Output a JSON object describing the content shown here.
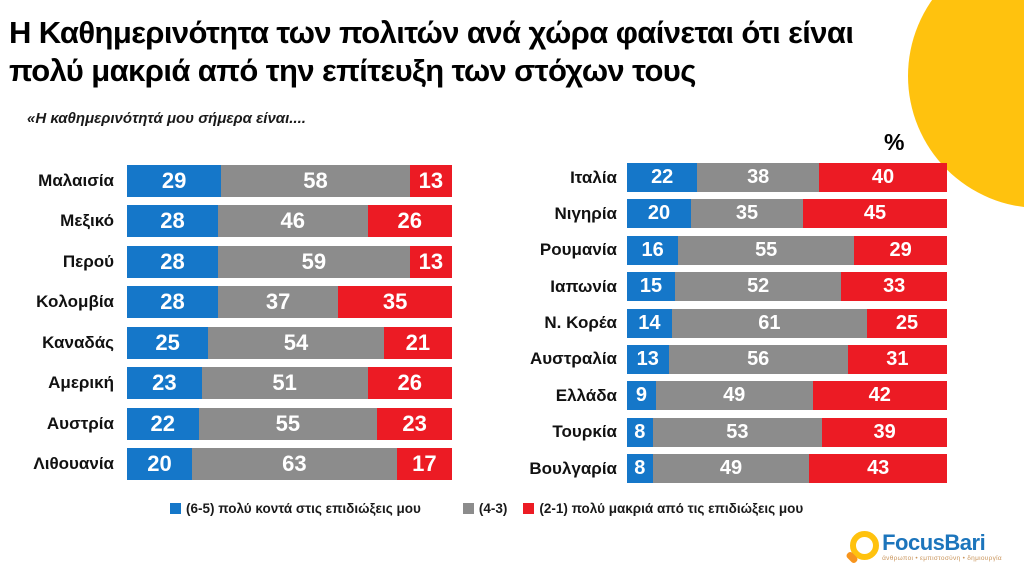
{
  "header": {
    "title_lines": [
      "Η Καθημερινότητα των πολιτών ανά χώρα φαίνεται ότι είναι",
      "πολύ μακριά από την επίτευξη των στόχων τους"
    ]
  },
  "subtitle": "«Η καθημερινότητά μου σήμερα είναι....",
  "percent_label": "%",
  "colors": {
    "close": "#1577C9",
    "mid": "#8C8C8C",
    "far": "#EC1B24",
    "accent_circle": "#FFC20E",
    "logo_blue": "#1C75BC",
    "logo_orange": "#F7941D"
  },
  "chart_data": [
    {
      "type": "bar",
      "orientation": "horizontal",
      "stacked": true,
      "xlim": [
        0,
        100
      ],
      "categories": [
        "Μαλαισία",
        "Μεξικό",
        "Περού",
        "Κολομβία",
        "Καναδάς",
        "Αμερική",
        "Αυστρία",
        "Λιθουανία"
      ],
      "series": [
        {
          "name": "(6-5) πολύ κοντά στις επιδιώξεις μου",
          "color": "#1577C9",
          "values": [
            29,
            28,
            28,
            28,
            25,
            23,
            22,
            20
          ]
        },
        {
          "name": "(4-3)",
          "color": "#8C8C8C",
          "values": [
            58,
            46,
            59,
            37,
            54,
            51,
            55,
            63
          ]
        },
        {
          "name": "(2-1) πολύ μακριά από τις επιδιώξεις μου",
          "color": "#EC1B24",
          "values": [
            13,
            26,
            13,
            35,
            21,
            26,
            23,
            17
          ]
        }
      ]
    },
    {
      "type": "bar",
      "orientation": "horizontal",
      "stacked": true,
      "xlim": [
        0,
        100
      ],
      "categories": [
        "Ιταλία",
        "Νιγηρία",
        "Ρουμανία",
        "Ιαπωνία",
        "Ν. Κορέα",
        "Αυστραλία",
        "Ελλάδα",
        "Τουρκία",
        "Βουλγαρία"
      ],
      "series": [
        {
          "name": "(6-5) πολύ κοντά στις επιδιώξεις μου",
          "color": "#1577C9",
          "values": [
            22,
            20,
            16,
            15,
            14,
            13,
            9,
            8,
            8
          ]
        },
        {
          "name": "(4-3)",
          "color": "#8C8C8C",
          "values": [
            38,
            35,
            55,
            52,
            61,
            56,
            49,
            53,
            49
          ]
        },
        {
          "name": "(2-1) πολύ μακριά από τις επιδιώξεις μου",
          "color": "#EC1B24",
          "values": [
            40,
            45,
            29,
            33,
            25,
            31,
            42,
            39,
            43
          ]
        }
      ]
    }
  ],
  "legend": {
    "items": [
      {
        "label": "(6-5)  πολύ κοντά  στις επιδιώξεις μου",
        "color": "#1577C9"
      },
      {
        "label": "(4-3)",
        "color": "#8C8C8C"
      },
      {
        "label": "(2-1)  πολύ μακριά από τις επιδιώξεις μου",
        "color": "#EC1B24"
      }
    ]
  },
  "logo": {
    "name": "FocusBari",
    "tagline": "άνθρωποι • εμπιστοσύνη • δημιουργία"
  }
}
